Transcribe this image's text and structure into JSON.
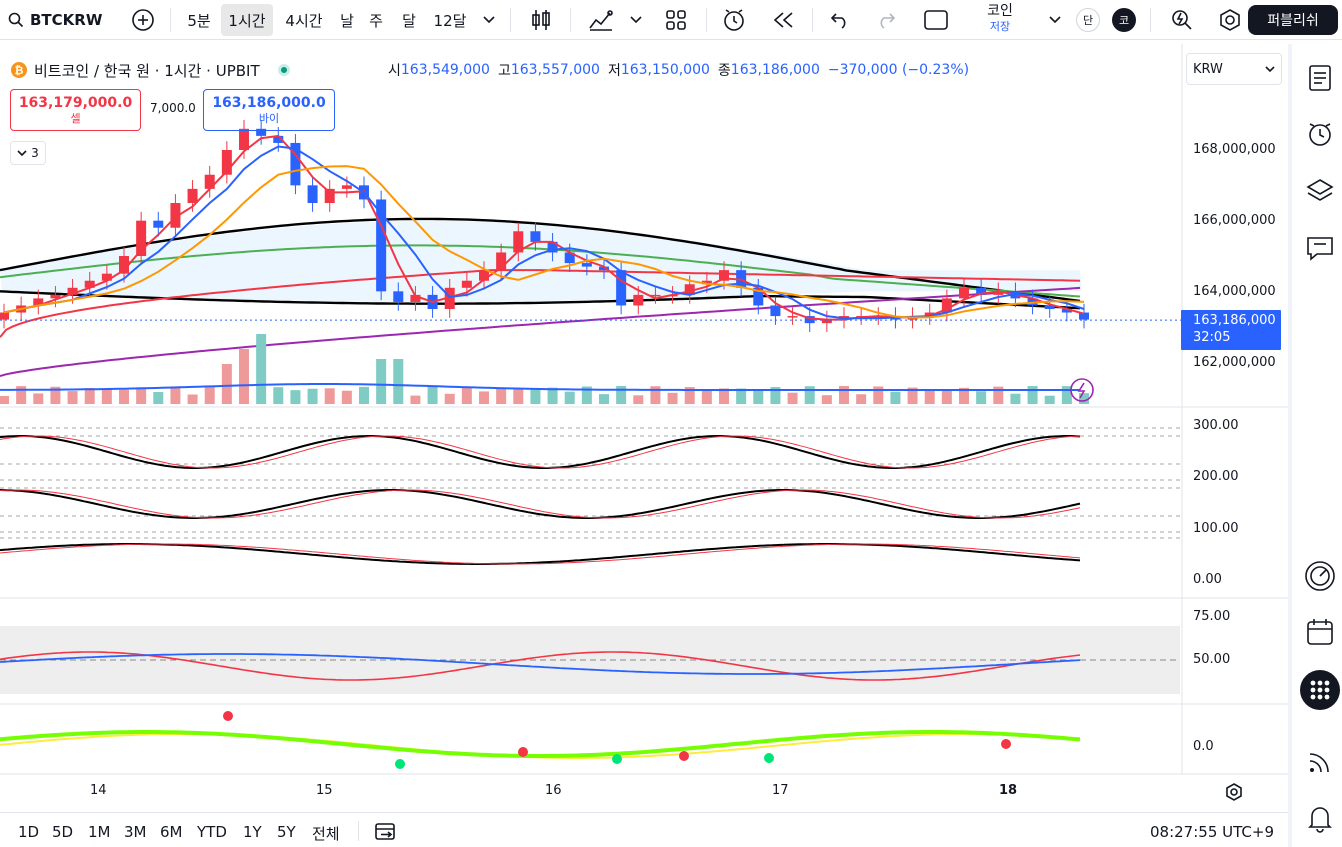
{
  "toolbar": {
    "symbol": "BTCKRW",
    "timeframes": [
      "5분",
      "1시간",
      "4시간",
      "날",
      "주",
      "달",
      "12달"
    ],
    "active_timeframe": "1시간",
    "coin_label": "코인",
    "coin_sub": "저장",
    "mode_dan": "단",
    "mode_ko": "코",
    "publish_label": "퍼블리쉬"
  },
  "legend": {
    "title": "비트코인 / 한국 원 · 1시간 · UPBIT",
    "open_key": "시",
    "open": "163,549,000",
    "high_key": "고",
    "high": "163,557,000",
    "low_key": "저",
    "low": "163,150,000",
    "close_key": "종",
    "close": "163,186,000",
    "change": "−370,000 (−0.23%)"
  },
  "trade": {
    "sell_price": "163,179,000.0",
    "sell_label": "셀",
    "spread": "7,000.0",
    "buy_price": "163,186,000.0",
    "buy_label": "바이",
    "collapse_count": "3"
  },
  "currency": "KRW",
  "price_axis": [
    "168,000,000",
    "166,000,000",
    "164,000,000",
    "162,000,000"
  ],
  "last_price": "163,186,000",
  "countdown": "32:05",
  "stoch_axis": [
    "300.00",
    "200.00",
    "100.00",
    "0.00"
  ],
  "rsi_axis": [
    "75.00",
    "50.00"
  ],
  "wt_axis": [
    "0.0"
  ],
  "x_axis": [
    "14",
    "15",
    "16",
    "17",
    "18"
  ],
  "ranges": [
    "1D",
    "5D",
    "1M",
    "3M",
    "6M",
    "YTD",
    "1Y",
    "5Y",
    "전체"
  ],
  "clock": "08:27:55 UTC+9",
  "colors": {
    "up": "#f23645",
    "down": "#2962ff",
    "accent": "#2962ff",
    "vol_up": "#ef9a9a",
    "vol_down": "#80cbc4"
  },
  "chart_data": {
    "type": "candlestick",
    "title": "비트코인 / 한국 원 · 1시간 · UPBIT",
    "ylim": [
      161500000,
      169800000
    ],
    "close_approx": [
      163.4,
      163.6,
      163.8,
      163.9,
      164.1,
      164.3,
      164.5,
      165.0,
      166.0,
      165.8,
      166.5,
      166.9,
      167.3,
      168.0,
      168.6,
      168.4,
      168.2,
      167.0,
      166.5,
      166.9,
      167.0,
      166.6,
      164.0,
      163.7,
      163.9,
      163.5,
      164.1,
      164.3,
      164.6,
      165.1,
      165.7,
      165.4,
      165.1,
      164.8,
      164.7,
      164.6,
      163.6,
      163.9,
      163.9,
      163.9,
      164.2,
      164.3,
      164.6,
      164.1,
      163.6,
      163.3,
      163.3,
      163.1,
      163.2,
      163.3,
      163.3,
      163.3,
      163.2,
      163.3,
      163.4,
      163.8,
      164.1,
      163.9,
      164.0,
      163.8,
      163.6,
      163.5,
      163.4,
      163.2
    ],
    "note_units": "millions KRW"
  }
}
